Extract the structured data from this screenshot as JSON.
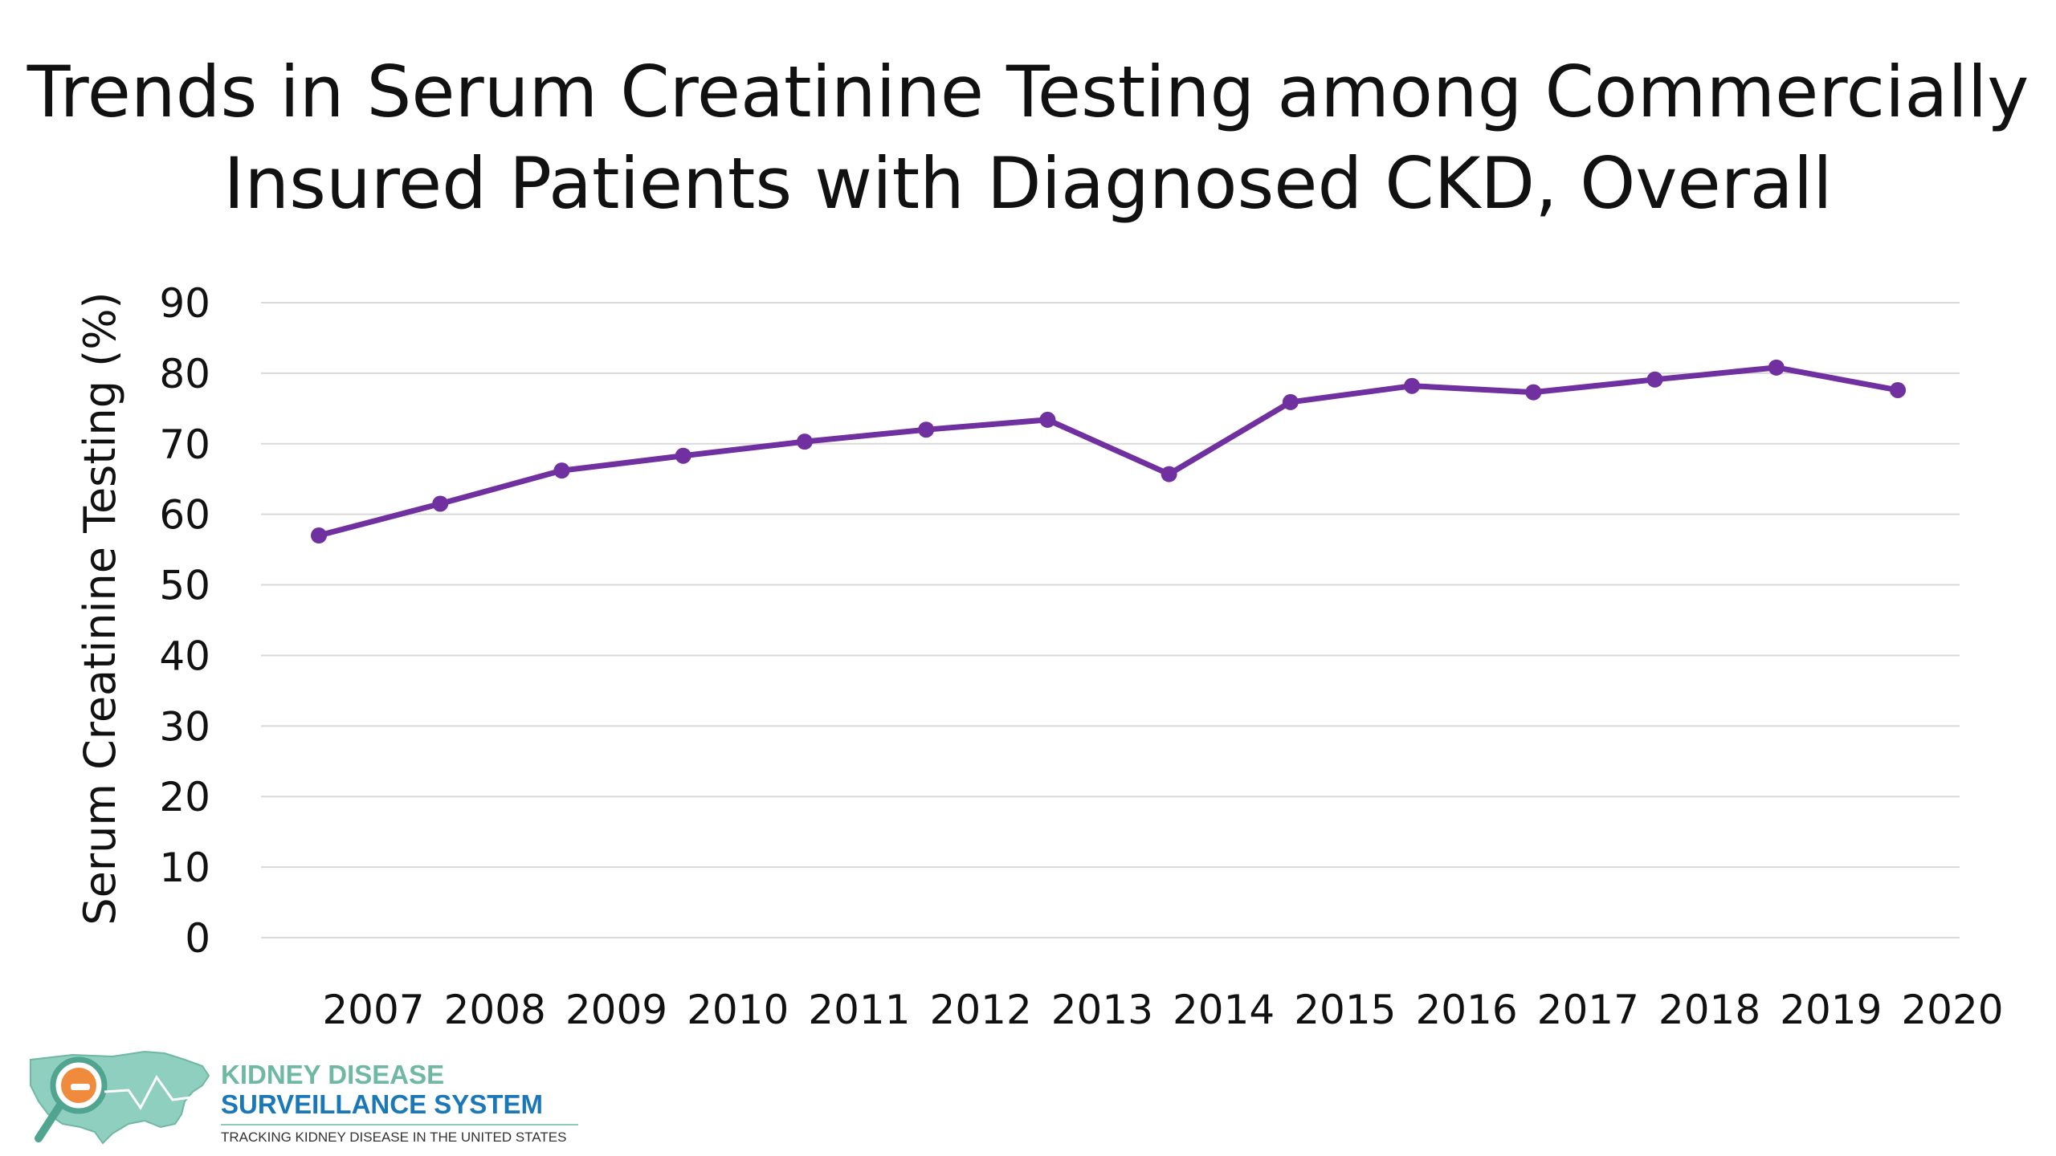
{
  "title": {
    "line1": "Trends in Serum Creatinine Testing among Commercially",
    "line2": "Insured Patients with Diagnosed CKD, Overall"
  },
  "logo": {
    "line1": "KIDNEY DISEASE",
    "line2": "SURVEILLANCE SYSTEM",
    "line3": "TRACKING KIDNEY DISEASE IN THE UNITED STATES"
  },
  "colors": {
    "series": "#7030a0",
    "grid": "#d9d9d9",
    "text": "#111111"
  },
  "chart_data": {
    "type": "line",
    "title": "Trends in Serum Creatinine Testing among Commercially Insured Patients with Diagnosed CKD, Overall",
    "xlabel": "",
    "ylabel": "Serum Creatinine Testing (%)",
    "ylim": [
      0,
      90
    ],
    "yticks": [
      0,
      10,
      20,
      30,
      40,
      50,
      60,
      70,
      80,
      90
    ],
    "grid": true,
    "legend": "none",
    "categories": [
      "2007",
      "2008",
      "2009",
      "2010",
      "2011",
      "2012",
      "2013",
      "2014",
      "2015",
      "2016",
      "2017",
      "2018",
      "2019",
      "2020"
    ],
    "series": [
      {
        "values": [
          57.0,
          61.5,
          66.2,
          68.3,
          70.3,
          72.0,
          73.4,
          65.7,
          75.9,
          78.2,
          77.3,
          79.1,
          80.8,
          77.6
        ]
      }
    ]
  }
}
